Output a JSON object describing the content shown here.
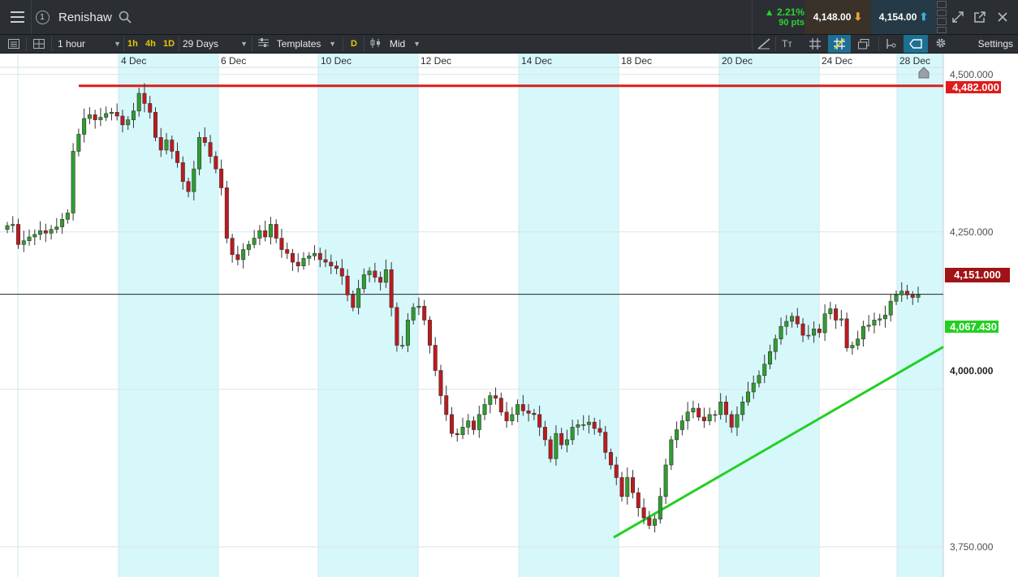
{
  "header": {
    "instrument": "Renishaw",
    "change_pct": "▲ 2.21%",
    "change_pts": "90 pts",
    "sell_price": "4,148.00",
    "buy_price": "4,154.00",
    "menu_icon": "hamburger-icon",
    "notification_count": "1"
  },
  "toolbar": {
    "interval": "1 hour",
    "quick_1h": "1h",
    "quick_4h": "4h",
    "quick_1d": "1D",
    "range": "29 Days",
    "templates": "Templates",
    "d_label": "D",
    "price_type": "Mid",
    "settings": "Settings"
  },
  "colors": {
    "up": "#2e9e2e",
    "down": "#c0191f",
    "shade": "#d6f8fb",
    "resistance": "#d81e1e",
    "support": "#22d022",
    "sell_bg": "#3a3229",
    "buy_bg": "#253a46"
  },
  "chart_data": {
    "type": "candlestick",
    "x_axis_labels": [
      "4 Dec",
      "6 Dec",
      "10 Dec",
      "12 Dec",
      "14 Dec",
      "18 Dec",
      "20 Dec",
      "24 Dec",
      "28 Dec"
    ],
    "y_axis_labels": [
      "4,500.000",
      "4,250.000",
      "4,000.000",
      "3,750.000"
    ],
    "ylim": [
      3715,
      4510
    ],
    "lines": {
      "resistance": 4482,
      "current": 4151,
      "support_start": {
        "date_label": "18 Dec",
        "value": 3765
      },
      "support_end_value": 4067.43
    },
    "price_tags": {
      "resistance": "4,482.000",
      "current": "4,151.000",
      "support": "4,067.430",
      "axis_current": "4,000.000"
    },
    "series_close": [
      4260,
      4262,
      4230,
      4236,
      4242,
      4246,
      4252,
      4248,
      4254,
      4258,
      4270,
      4280,
      4378,
      4405,
      4430,
      4436,
      4428,
      4432,
      4438,
      4440,
      4434,
      4420,
      4428,
      4442,
      4470,
      4454,
      4440,
      4400,
      4380,
      4396,
      4378,
      4360,
      4330,
      4314,
      4350,
      4400,
      4392,
      4370,
      4350,
      4320,
      4240,
      4214,
      4206,
      4222,
      4230,
      4240,
      4252,
      4242,
      4262,
      4240,
      4222,
      4216,
      4202,
      4196,
      4208,
      4212,
      4216,
      4206,
      4202,
      4196,
      4192,
      4180,
      4150,
      4130,
      4160,
      4182,
      4188,
      4178,
      4170,
      4190,
      4130,
      4070,
      4070,
      4110,
      4130,
      4132,
      4110,
      4070,
      4030,
      3990,
      3960,
      3930,
      3928,
      3940,
      3950,
      3936,
      3960,
      3976,
      3990,
      3986,
      3964,
      3950,
      3960,
      3976,
      3966,
      3962,
      3960,
      3940,
      3920,
      3890,
      3930,
      3912,
      3920,
      3940,
      3944,
      3944,
      3948,
      3938,
      3932,
      3900,
      3880,
      3860,
      3830,
      3860,
      3836,
      3812,
      3796,
      3784,
      3794,
      3830,
      3880,
      3920,
      3936,
      3950,
      3964,
      3970,
      3956,
      3950,
      3960,
      3960,
      3980,
      3960,
      3940,
      3960,
      3980,
      3996,
      4010,
      4022,
      4040,
      4060,
      4080,
      4100,
      4108,
      4116,
      4104,
      4086,
      4086,
      4096,
      4090,
      4120,
      4128,
      4110,
      4112,
      4066,
      4070,
      4080,
      4100,
      4102,
      4110,
      4112,
      4118,
      4140,
      4150,
      4156,
      4150,
      4146,
      4150
    ]
  },
  "icons": {
    "search": "search-icon",
    "popout": "popout-icon",
    "expand": "expand-icon",
    "close": "close-icon",
    "home_marker": "home-icon"
  }
}
